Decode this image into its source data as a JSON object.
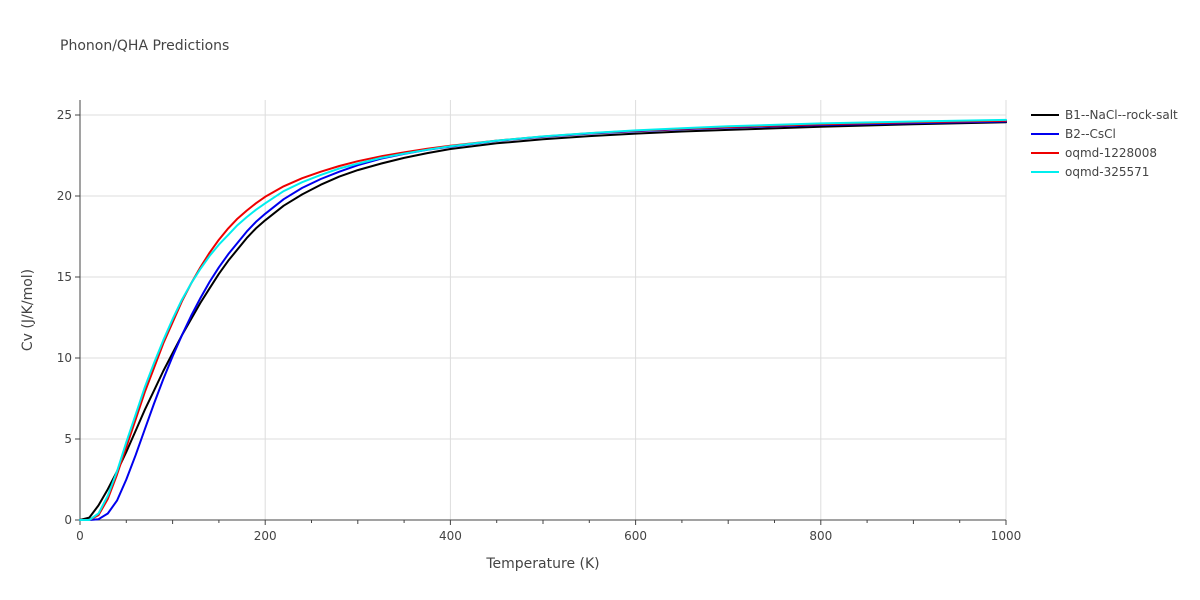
{
  "chart_data": {
    "type": "line",
    "title": "Phonon/QHA Predictions",
    "xlabel": "Temperature (K)",
    "ylabel": "Cv (J/K/mol)",
    "xlim": [
      0,
      1000
    ],
    "ylim": [
      0,
      26
    ],
    "xticks": [
      0,
      200,
      400,
      600,
      800,
      1000
    ],
    "yticks": [
      0,
      5,
      10,
      15,
      20,
      25
    ],
    "grid": true,
    "legend_position": "top-right",
    "x": [
      0,
      10,
      20,
      30,
      40,
      50,
      60,
      70,
      80,
      90,
      100,
      110,
      120,
      130,
      140,
      150,
      160,
      170,
      180,
      190,
      200,
      220,
      240,
      260,
      280,
      300,
      325,
      350,
      375,
      400,
      450,
      500,
      550,
      600,
      650,
      700,
      800,
      900,
      1000
    ],
    "series": [
      {
        "name": "B1--NaCl--rock-salt",
        "color": "#000000",
        "values": [
          0,
          0.15,
          0.9,
          1.9,
          3.0,
          4.2,
          5.5,
          6.8,
          8.0,
          9.2,
          10.3,
          11.4,
          12.4,
          13.4,
          14.3,
          15.2,
          16.0,
          16.7,
          17.4,
          18.0,
          18.5,
          19.4,
          20.1,
          20.7,
          21.2,
          21.6,
          22.0,
          22.35,
          22.65,
          22.9,
          23.25,
          23.5,
          23.7,
          23.85,
          23.98,
          24.08,
          24.28,
          24.43,
          24.55
        ]
      },
      {
        "name": "B2--CsCl",
        "color": "#0000ee",
        "values": [
          0,
          0.0,
          0.05,
          0.4,
          1.2,
          2.5,
          4.0,
          5.6,
          7.2,
          8.7,
          10.1,
          11.4,
          12.6,
          13.7,
          14.7,
          15.6,
          16.4,
          17.1,
          17.8,
          18.4,
          18.9,
          19.8,
          20.5,
          21.05,
          21.5,
          21.9,
          22.3,
          22.6,
          22.85,
          23.05,
          23.4,
          23.65,
          23.85,
          24.0,
          24.12,
          24.22,
          24.38,
          24.5,
          24.6
        ]
      },
      {
        "name": "oqmd-1228008",
        "color": "#ee0000",
        "values": [
          0,
          0.0,
          0.3,
          1.3,
          2.8,
          4.5,
          6.2,
          7.9,
          9.4,
          10.9,
          12.2,
          13.5,
          14.6,
          15.6,
          16.5,
          17.3,
          18.0,
          18.6,
          19.1,
          19.55,
          19.95,
          20.6,
          21.1,
          21.5,
          21.85,
          22.15,
          22.45,
          22.7,
          22.92,
          23.1,
          23.42,
          23.67,
          23.87,
          24.03,
          24.15,
          24.26,
          24.43,
          24.55,
          24.65
        ]
      },
      {
        "name": "oqmd-325571",
        "color": "#00eeee",
        "values": [
          0,
          0.0,
          0.4,
          1.5,
          3.0,
          4.8,
          6.5,
          8.2,
          9.7,
          11.1,
          12.4,
          13.6,
          14.6,
          15.5,
          16.3,
          17.0,
          17.6,
          18.2,
          18.7,
          19.15,
          19.55,
          20.3,
          20.85,
          21.3,
          21.7,
          22.0,
          22.35,
          22.62,
          22.86,
          23.07,
          23.42,
          23.68,
          23.88,
          24.05,
          24.18,
          24.3,
          24.48,
          24.6,
          24.7
        ]
      }
    ]
  }
}
